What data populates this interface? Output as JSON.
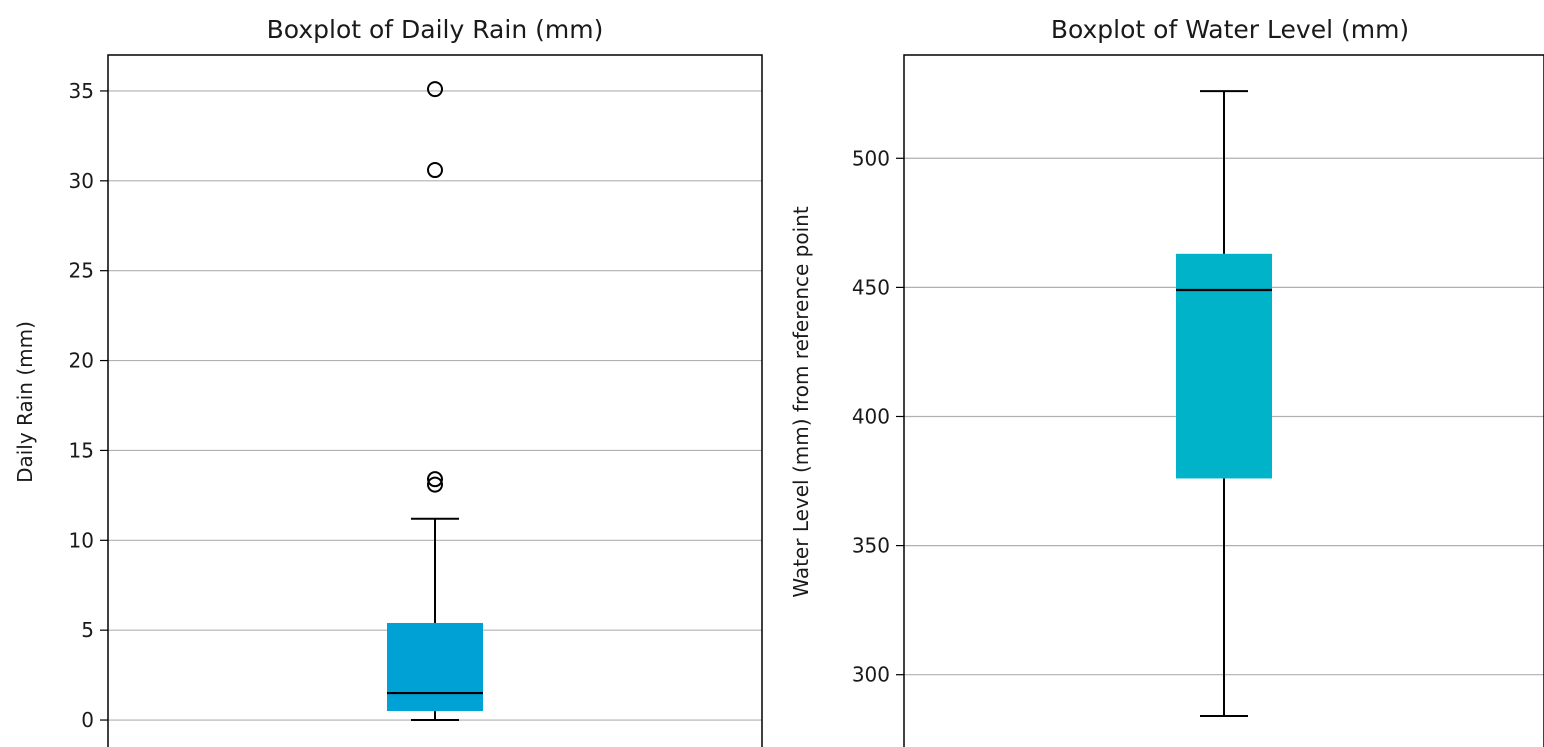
{
  "chart_data": [
    {
      "type": "boxplot",
      "title": "Boxplot of Daily Rain (mm)",
      "xlabel": "",
      "ylabel": "Daily Rain (mm)",
      "ylim": [
        -1.5,
        37
      ],
      "yticks": [
        0,
        5,
        10,
        15,
        20,
        25,
        30,
        35
      ],
      "grid": "y",
      "box": {
        "whisker_low": 0.0,
        "q1": 0.5,
        "median": 1.5,
        "q3": 5.4,
        "whisker_high": 11.2,
        "outliers": [
          13.1,
          13.4,
          30.6,
          35.1
        ]
      },
      "box_color": "#00a2d6"
    },
    {
      "type": "boxplot",
      "title": "Boxplot of Water Level (mm)",
      "xlabel": "",
      "ylabel": "Water Level (mm) from reference point",
      "ylim": [
        272,
        540
      ],
      "yticks": [
        300,
        350,
        400,
        450,
        500
      ],
      "grid": "y",
      "box": {
        "whisker_low": 284,
        "q1": 376,
        "median": 449,
        "q3": 463,
        "whisker_high": 526,
        "outliers": []
      },
      "box_color": "#00b3c8"
    }
  ]
}
